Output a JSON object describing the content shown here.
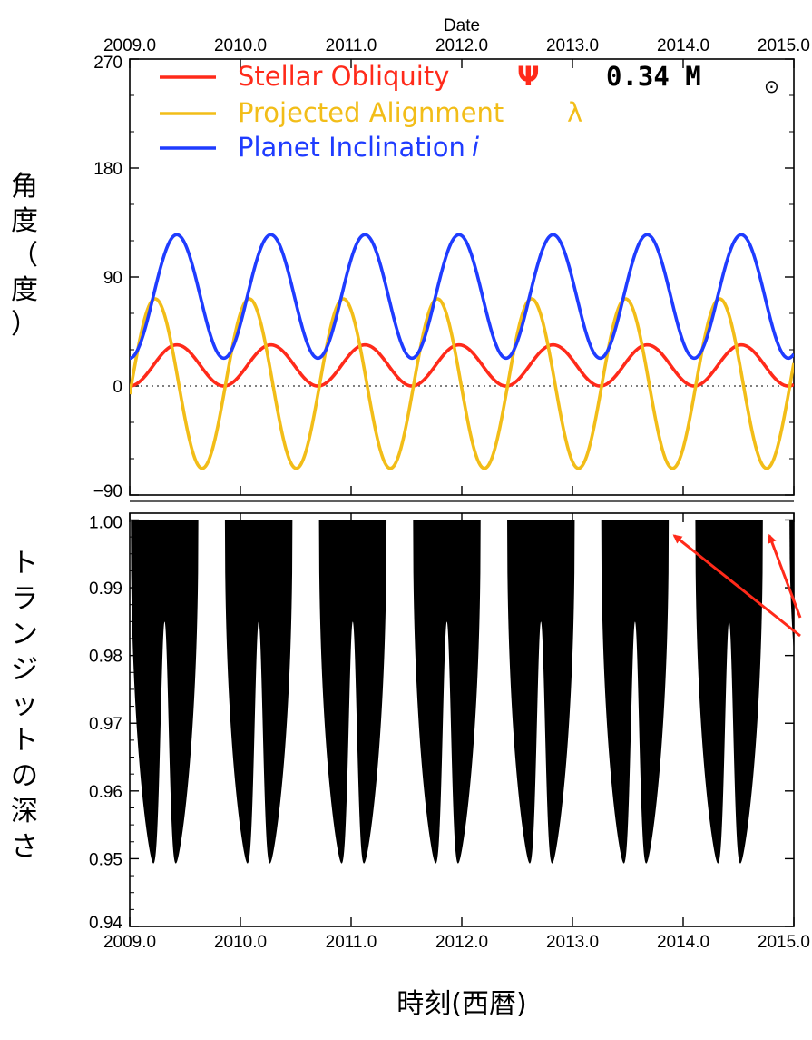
{
  "chart_data": [
    {
      "type": "line",
      "title": "",
      "top_axis_title": "Date",
      "ylabel": "角度（度）",
      "xlim": [
        2009.0,
        2015.0
      ],
      "ylim": [
        -90,
        270
      ],
      "x_tick_labels": [
        "2009.0",
        "2010.0",
        "2011.0",
        "2012.0",
        "2013.0",
        "2014.0",
        "2015.0"
      ],
      "y_tick_labels": [
        "270",
        "180",
        "90",
        "0",
        "−90"
      ],
      "reference_line": {
        "y": 0,
        "style": "dotted"
      },
      "annotation": {
        "text": "0.34 M",
        "symbol": "⊙"
      },
      "legend_position": "top-left",
      "period_years": 0.85,
      "series": [
        {
          "name": "Stellar Obliquity",
          "symbol": "Ψ",
          "color": "#ff2a1a",
          "min": 0,
          "max": 34,
          "phase_at_2009": 0.0
        },
        {
          "name": "Projected Alignment",
          "symbol": "λ",
          "color": "#f2bd18",
          "min": -68,
          "max": 72,
          "phase_at_2009": 0.23
        },
        {
          "name": "Planet Inclination",
          "symbol": "i",
          "color": "#1f3cff",
          "min": 23,
          "max": 125,
          "phase_at_2009": 0.0
        }
      ]
    },
    {
      "type": "area",
      "ylabel": "トランジットの深さ",
      "xlabel": "時刻(西暦)",
      "xlim": [
        2009.0,
        2015.0
      ],
      "ylim": [
        0.94,
        1.001
      ],
      "x_tick_labels": [
        "2009.0",
        "2010.0",
        "2011.0",
        "2012.0",
        "2013.0",
        "2014.0",
        "2015.0"
      ],
      "y_tick_labels": [
        "1.00",
        "0.99",
        "0.98",
        "0.97",
        "0.96",
        "0.95",
        "0.94"
      ],
      "fill_color": "#000000",
      "transit_windows": [
        {
          "start": 2009.01,
          "end": 2009.62,
          "min_depth": 0.945,
          "center_depth": 0.985
        },
        {
          "start": 2009.86,
          "end": 2010.47,
          "min_depth": 0.945,
          "center_depth": 0.985
        },
        {
          "start": 2010.71,
          "end": 2011.32,
          "min_depth": 0.945,
          "center_depth": 0.985
        },
        {
          "start": 2011.56,
          "end": 2012.17,
          "min_depth": 0.945,
          "center_depth": 0.985
        },
        {
          "start": 2012.41,
          "end": 2013.02,
          "min_depth": 0.945,
          "center_depth": 0.985
        },
        {
          "start": 2013.26,
          "end": 2013.87,
          "min_depth": 0.945,
          "center_depth": 0.985
        },
        {
          "start": 2014.11,
          "end": 2014.72,
          "min_depth": 0.945,
          "center_depth": 0.985
        },
        {
          "start": 2014.96,
          "end": 2015.0,
          "min_depth": 0.96,
          "center_depth": 0.985
        }
      ],
      "arrows": [
        {
          "target_x": 2013.87,
          "target_y": 0.9985
        },
        {
          "target_x": 2014.73,
          "target_y": 0.9985
        }
      ],
      "arrow_color": "#ff2a1a"
    }
  ]
}
